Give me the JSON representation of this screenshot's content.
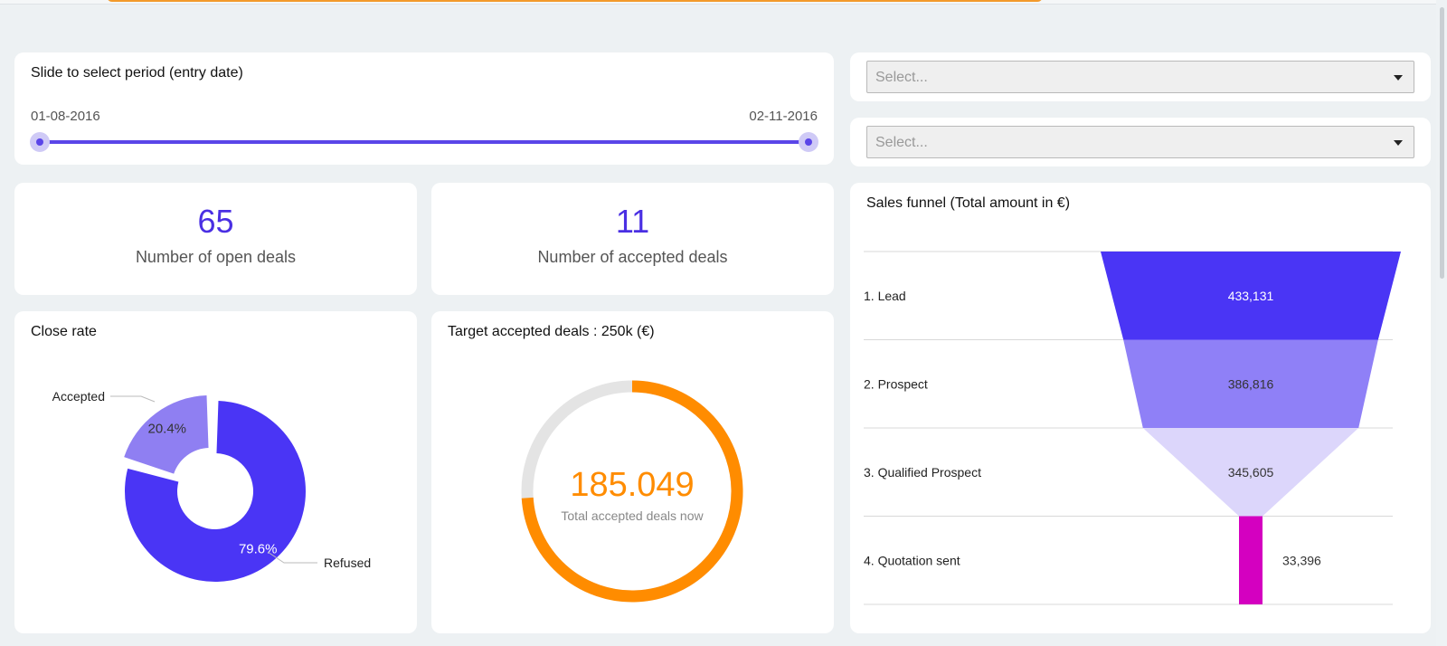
{
  "colors": {
    "accent": "#4a2fe3",
    "donut_refused": "#4a35f5",
    "donut_accepted": "#8f7ff2",
    "gauge_value": "#ff8c00",
    "gauge_track": "#e4e4e4",
    "funnel_lead": "#4a35f5",
    "funnel_prospect": "#8f80f7",
    "funnel_qualified": "#dcd6fb",
    "funnel_quotation": "#d400c0",
    "top_accent": "#f39a2b"
  },
  "period_filter": {
    "title": "Slide to select period (entry date)",
    "start_date": "01-08-2016",
    "end_date": "02-11-2016"
  },
  "filters": {
    "select_1": {
      "placeholder": "Select...",
      "icon": "chevron-down-icon"
    },
    "select_2": {
      "placeholder": "Select...",
      "icon": "chevron-down-icon"
    }
  },
  "kpis": {
    "open_deals": {
      "value": "65",
      "label": "Number of open deals"
    },
    "accepted_deals": {
      "value": "11",
      "label": "Number of accepted deals"
    }
  },
  "gauge": {
    "title": "Target accepted deals : 250k (€)",
    "value_text": "185.049",
    "subtitle": "Total accepted deals now",
    "fraction": 0.74
  },
  "chart_data": [
    {
      "type": "pie",
      "variant": "donut",
      "title": "Close rate",
      "slices": [
        {
          "label": "Accepted",
          "value": 20.4,
          "value_label": "20.4%"
        },
        {
          "label": "Refused",
          "value": 79.6,
          "value_label": "79.6%"
        }
      ],
      "legend": "none"
    },
    {
      "type": "funnel",
      "title": "Sales funnel (Total amount in €)",
      "categories": [
        "1. Lead",
        "2. Prospect",
        "3. Qualified Prospect",
        "4. Quotation sent"
      ],
      "values": [
        433131,
        386816,
        345605,
        33396
      ],
      "value_labels": [
        "433,131",
        "386,816",
        "345,605",
        "33,396"
      ]
    }
  ]
}
